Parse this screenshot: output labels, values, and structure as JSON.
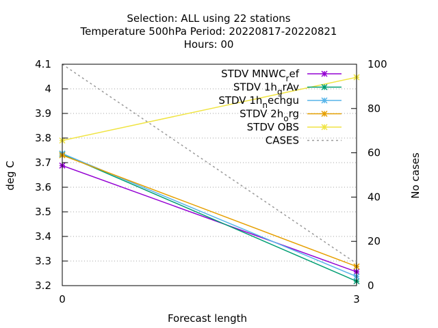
{
  "chart_data": {
    "type": "line",
    "title_lines": [
      "Selection: ALL using    22 stations",
      "Temperature 500hPa    Period: 20220817-20220821",
      "Hours:  00"
    ],
    "xlabel": "Forecast length",
    "ylabel": "deg C",
    "y2label": "No cases",
    "x": [
      0,
      3
    ],
    "xlim": [
      0,
      3
    ],
    "xticks": [
      "0",
      "3"
    ],
    "ylim": [
      3.2,
      4.1
    ],
    "yticks": [
      "3.2",
      "3.3",
      "3.4",
      "3.5",
      "3.6",
      "3.7",
      "3.8",
      "3.9",
      "4",
      "4.1"
    ],
    "y2lim": [
      0,
      100
    ],
    "y2ticks": [
      "0",
      "20",
      "40",
      "60",
      "80",
      "100"
    ],
    "grid": true,
    "legend_position": "top-right",
    "series": [
      {
        "name": "STDV MNWC_ref",
        "legend_main": "STDV MNWC",
        "legend_sub": "r",
        "legend_tail": "ef",
        "color": "#9400d3",
        "values": [
          3.688,
          3.256
        ],
        "axis": "y",
        "marker": "x"
      },
      {
        "name": "STDV 1h_grAv",
        "legend_main": "STDV 1h",
        "legend_sub": "g",
        "legend_tail": "rAv",
        "color": "#009e73",
        "values": [
          3.735,
          3.218
        ],
        "axis": "y",
        "marker": "x"
      },
      {
        "name": "STDV 1h_nechgu",
        "legend_main": "STDV 1h",
        "legend_sub": "n",
        "legend_tail": "echgu",
        "color": "#56b4e9",
        "values": [
          3.737,
          3.237
        ],
        "axis": "y",
        "marker": "x"
      },
      {
        "name": "STDV 2h_org",
        "legend_main": "STDV 2h",
        "legend_sub": "o",
        "legend_tail": "rg",
        "color": "#e69f00",
        "values": [
          3.73,
          3.278
        ],
        "axis": "y",
        "marker": "x"
      },
      {
        "name": "STDV OBS",
        "legend_main": "STDV OBS",
        "legend_sub": "",
        "legend_tail": "",
        "color": "#f0e442",
        "values": [
          3.79,
          4.047
        ],
        "axis": "y",
        "marker": "x"
      },
      {
        "name": "CASES",
        "legend_main": "CASES",
        "legend_sub": "",
        "legend_tail": "",
        "color": "#999999",
        "values": [
          100,
          10
        ],
        "axis": "y2",
        "marker": "none",
        "dashed": true
      }
    ]
  }
}
